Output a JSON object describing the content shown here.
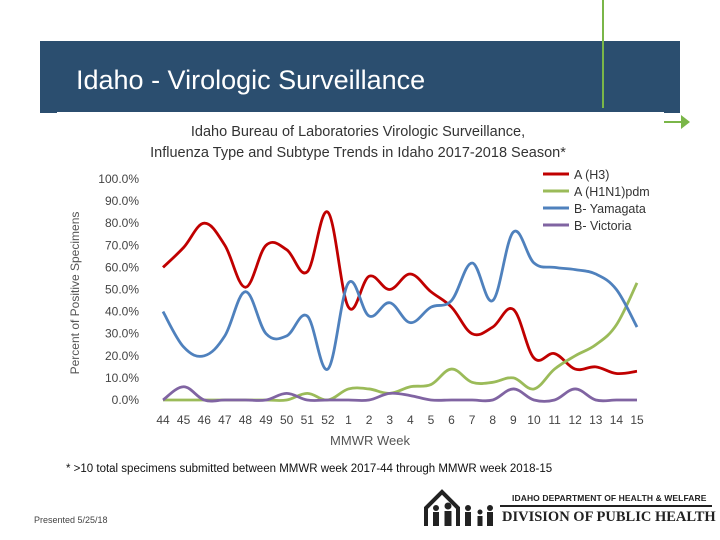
{
  "slide": {
    "title": "Idaho - Virologic Surveillance",
    "footnote": "* >10 total specimens submitted between MMWR week 2017-44 through MMWR week 2018-15",
    "presented": "Presented 5/25/18",
    "accent_color": "#7ab648",
    "banner_color": "#2b4e6f"
  },
  "logo": {
    "line1": "IDAHO DEPARTMENT OF HEALTH & WELFARE",
    "line2": "DIVISION OF PUBLIC HEALTH",
    "icon": "family-icon"
  },
  "chart_data": {
    "type": "line",
    "title_line1": "Idaho Bureau of Laboratories Virologic Surveillance,",
    "title_line2": "Influenza Type and Subtype Trends in Idaho 2017-2018 Season*",
    "xlabel": "MMWR Week",
    "ylabel": "Percent of Positive Specimens",
    "ylim": [
      0,
      100
    ],
    "yticks": [
      "0.0%",
      "10.0%",
      "20.0%",
      "30.0%",
      "40.0%",
      "50.0%",
      "60.0%",
      "70.0%",
      "80.0%",
      "90.0%",
      "100.0%"
    ],
    "categories": [
      "44",
      "45",
      "46",
      "47",
      "48",
      "49",
      "50",
      "51",
      "52",
      "1",
      "2",
      "3",
      "4",
      "5",
      "6",
      "7",
      "8",
      "9",
      "10",
      "11",
      "12",
      "13",
      "14",
      "15"
    ],
    "grid": false,
    "legend_position": "top-right",
    "series": [
      {
        "name": "A (H3)",
        "color": "#c00000",
        "values": [
          60,
          69,
          80,
          70,
          51,
          70,
          68,
          58,
          85,
          42,
          56,
          50,
          57,
          49,
          42,
          30,
          33,
          41,
          19,
          21,
          14,
          15,
          12,
          13
        ]
      },
      {
        "name": "A (H1N1)pdm",
        "color": "#9bbb59",
        "values": [
          0,
          0,
          0,
          0,
          0,
          0,
          0,
          3,
          0,
          5,
          5,
          3,
          6,
          7,
          14,
          8,
          8,
          10,
          5,
          14,
          20,
          25,
          34,
          53
        ]
      },
      {
        "name": "B- Yamagata",
        "color": "#4f81bd",
        "values": [
          40,
          24,
          20,
          29,
          49,
          30,
          29,
          38,
          14,
          53,
          38,
          44,
          35,
          42,
          45,
          62,
          45,
          76,
          62,
          60,
          59,
          57,
          50,
          33
        ]
      },
      {
        "name": "B- Victoria",
        "color": "#8064a2",
        "values": [
          0,
          6,
          0,
          0,
          0,
          0,
          3,
          0,
          0,
          0,
          0,
          3,
          2,
          0,
          0,
          0,
          0,
          5,
          0,
          0,
          5,
          0,
          0,
          0
        ]
      }
    ]
  }
}
